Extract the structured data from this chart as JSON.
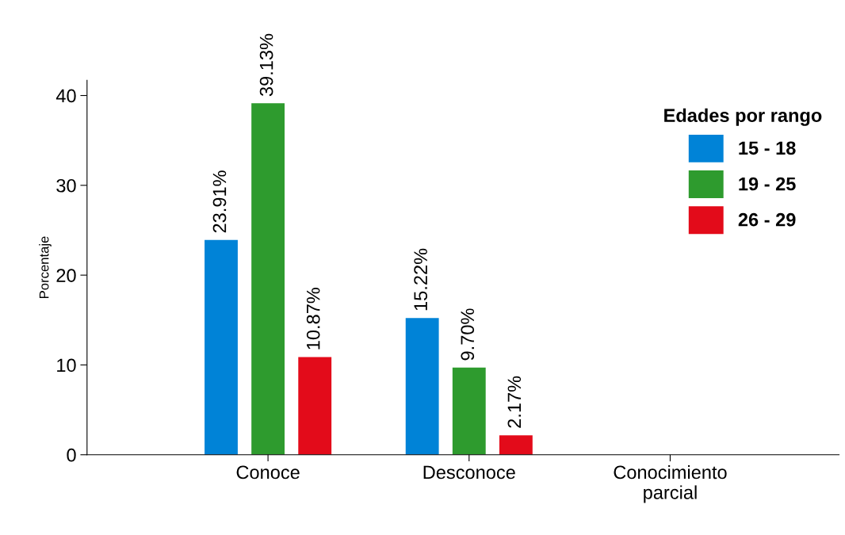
{
  "chart_data": {
    "type": "bar",
    "categories": [
      "Conoce",
      "Desconoce",
      "Conocimiento\nparcial"
    ],
    "series": [
      {
        "name": "15 - 18",
        "color": "#0083d7",
        "values": [
          23.91,
          15.22,
          null
        ],
        "value_labels": [
          "23.91%",
          "15.22%",
          null
        ]
      },
      {
        "name": "19 - 25",
        "color": "#2e9b2e",
        "values": [
          39.13,
          9.7,
          null
        ],
        "value_labels": [
          "39.13%",
          "9.70%",
          null
        ]
      },
      {
        "name": "26 - 29",
        "color": "#e30b1a",
        "values": [
          10.87,
          2.17,
          null
        ],
        "value_labels": [
          "10.87%",
          "2.17%",
          null
        ]
      }
    ],
    "ylabel": "Porcentaje",
    "legend_title": "Edades por rango",
    "legend": "top right",
    "ylim": [
      0,
      41.7
    ],
    "yticks": [
      0,
      10,
      20,
      30,
      40
    ],
    "grid": false
  }
}
